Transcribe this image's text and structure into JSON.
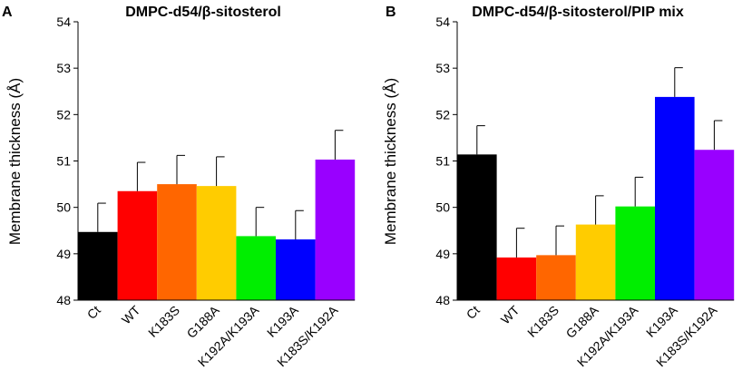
{
  "chart_data": [
    {
      "type": "bar",
      "panel": "A",
      "title": "DMPC-d54/β-sitosterol",
      "ylabel": "Membrane thickness (Å)",
      "xlabel": "",
      "ylim": [
        48,
        54
      ],
      "yticks": [
        "48",
        "49",
        "50",
        "51",
        "52",
        "53",
        "54"
      ],
      "categories": [
        "Ct",
        "WT",
        "K183S",
        "G188A",
        "K192A/K193A",
        "K193A",
        "K183S/K192A"
      ],
      "values": [
        49.47,
        50.35,
        50.5,
        50.46,
        49.38,
        49.31,
        51.03
      ],
      "errors": [
        0.62,
        0.62,
        0.62,
        0.63,
        0.62,
        0.62,
        0.63
      ],
      "colors": [
        "#000000",
        "#ff0000",
        "#ff6600",
        "#ffcc00",
        "#00ee00",
        "#0000ff",
        "#9900ff"
      ]
    },
    {
      "type": "bar",
      "panel": "B",
      "title": "DMPC-d54/β-sitosterol/PIP mix",
      "ylabel": "Membrane thickness (Å)",
      "xlabel": "",
      "ylim": [
        48,
        54
      ],
      "yticks": [
        "48",
        "49",
        "50",
        "51",
        "52",
        "53",
        "54"
      ],
      "categories": [
        "Ct",
        "WT",
        "K183S",
        "G188A",
        "K192A/K193A",
        "K193A",
        "K183S/K192A"
      ],
      "values": [
        51.14,
        48.92,
        48.97,
        49.63,
        50.02,
        52.38,
        51.24
      ],
      "errors": [
        0.62,
        0.63,
        0.63,
        0.62,
        0.63,
        0.63,
        0.63
      ],
      "colors": [
        "#000000",
        "#ff0000",
        "#ff6600",
        "#ffcc00",
        "#00ee00",
        "#0000ff",
        "#9900ff"
      ]
    }
  ]
}
